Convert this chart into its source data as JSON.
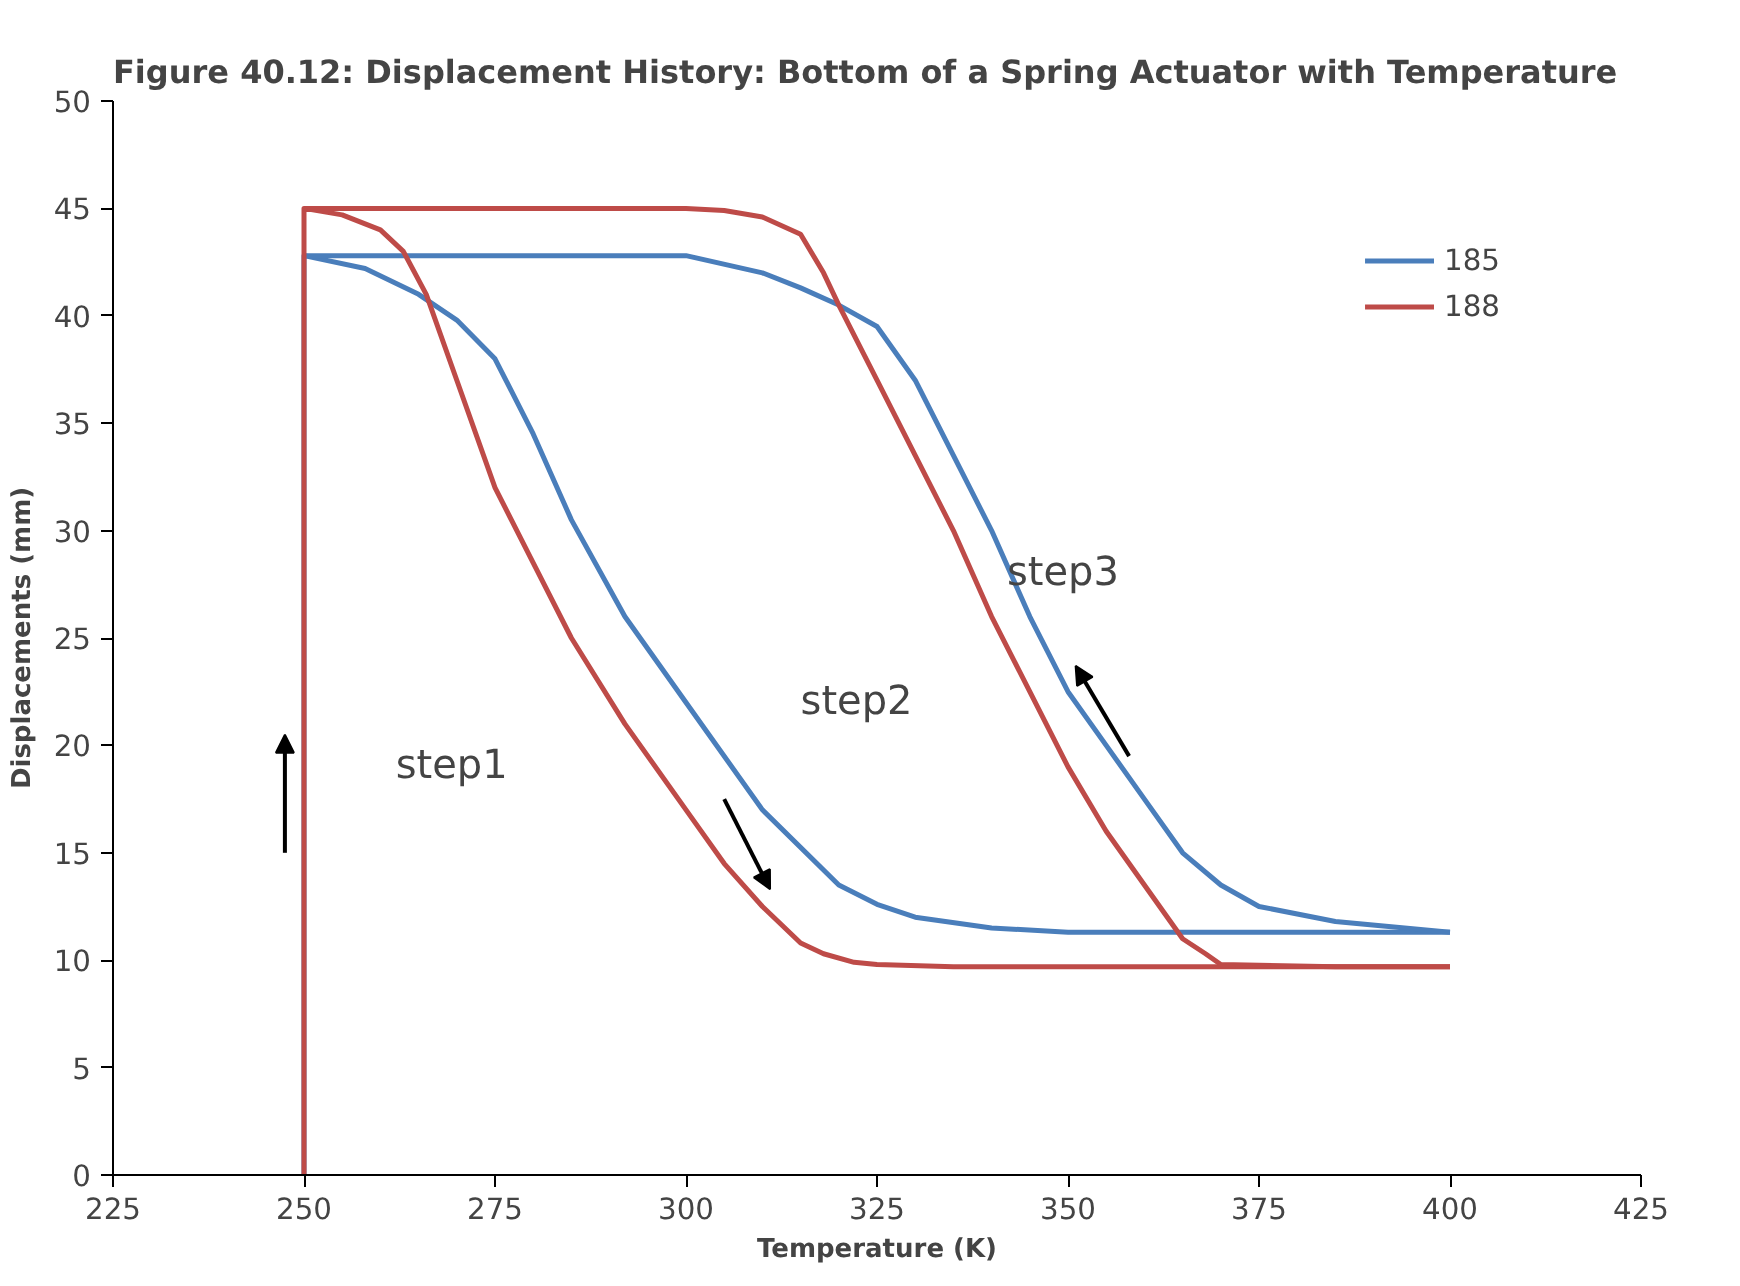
{
  "chart_data": {
    "type": "line",
    "title": "Figure 40.12: Displacement History: Bottom of a Spring Actuator with Temperature",
    "xlabel": "Temperature (K)",
    "ylabel": "Displacements (mm)",
    "xlim": [
      225,
      425
    ],
    "xticks": [
      225,
      250,
      275,
      300,
      325,
      350,
      375,
      400,
      425
    ],
    "ylim": [
      0,
      50
    ],
    "yticks": [
      0,
      5,
      10,
      15,
      20,
      25,
      30,
      35,
      40,
      45,
      50
    ],
    "grid": false,
    "legend": "top right",
    "marker": "none",
    "line_style": "solid",
    "series": [
      {
        "name": "185",
        "color": "#4a7ebb",
        "x": [
          250,
          250,
          258,
          265,
          270,
          275,
          280,
          285,
          292,
          300,
          310,
          320,
          325,
          330,
          340,
          350,
          375,
          400
        ],
        "values": [
          0,
          42.8,
          42.2,
          41,
          39.8,
          38,
          34.5,
          30.5,
          26,
          22,
          17,
          13.5,
          12.6,
          12,
          11.5,
          11.3,
          11.3,
          11.3
        ]
      },
      {
        "color": "#4a7ebb",
        "x": [
          250,
          275,
          300,
          310,
          315,
          320,
          325,
          330,
          335,
          340,
          345,
          350,
          355,
          360,
          365,
          370,
          375,
          385,
          400
        ],
        "values": [
          42.8,
          42.8,
          42.8,
          42,
          41.3,
          40.5,
          39.5,
          37,
          33.5,
          30,
          26,
          22.5,
          20,
          17.5,
          15,
          13.5,
          12.5,
          11.8,
          11.3
        ]
      },
      {
        "name": "188",
        "color": "#be4b48",
        "x": [
          250,
          250,
          255,
          260,
          263,
          266,
          270,
          275,
          280,
          285,
          292,
          300,
          305,
          310,
          315,
          318,
          322,
          325,
          335,
          350,
          375,
          400
        ],
        "values": [
          0,
          45,
          44.7,
          44,
          43,
          41,
          37,
          32,
          28.5,
          25,
          21,
          17,
          14.5,
          12.5,
          10.8,
          10.3,
          9.9,
          9.8,
          9.7,
          9.7,
          9.7,
          9.7
        ]
      },
      {
        "color": "#be4b48",
        "x": [
          250,
          275,
          300,
          305,
          310,
          315,
          318,
          320,
          325,
          330,
          335,
          340,
          345,
          350,
          355,
          360,
          365,
          368,
          370,
          385,
          400
        ],
        "values": [
          45,
          45,
          45,
          44.9,
          44.6,
          43.8,
          42,
          40.5,
          37,
          33.5,
          30,
          26,
          22.5,
          19,
          16,
          13.5,
          11,
          10.3,
          9.8,
          9.7,
          9.7
        ]
      }
    ],
    "annotations": [
      "step1",
      "step2",
      "step3"
    ]
  }
}
